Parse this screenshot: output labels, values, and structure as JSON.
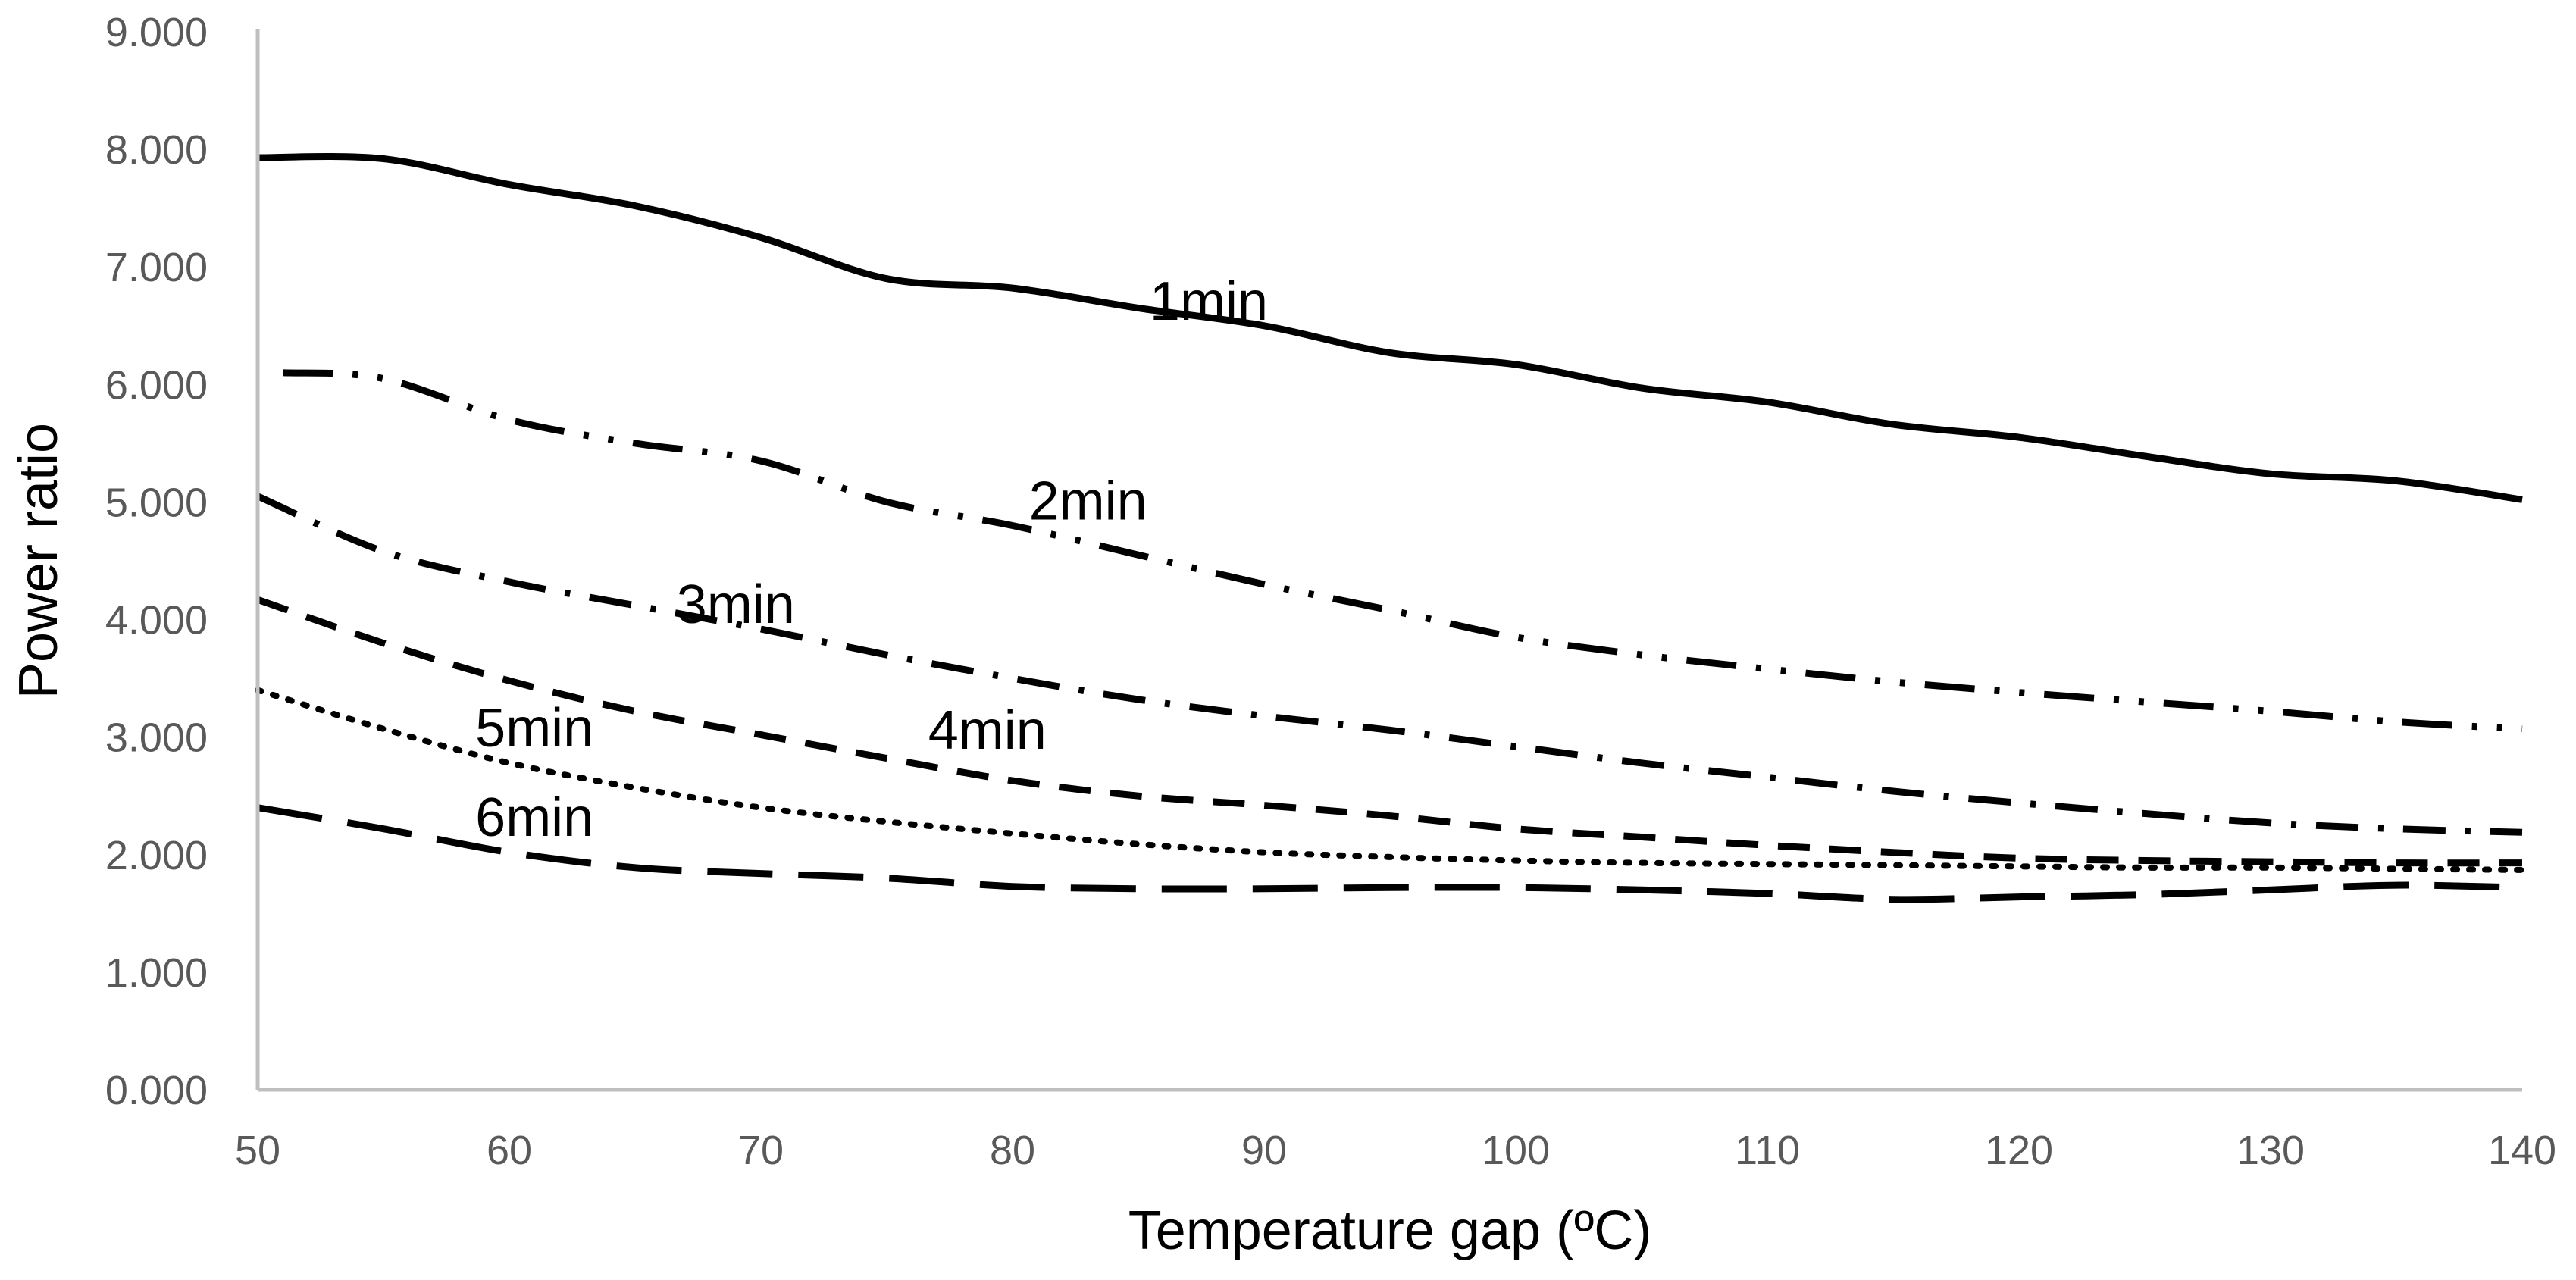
{
  "chart_data": {
    "type": "line",
    "title": "",
    "xlabel": "Temperature gap (ºC)",
    "ylabel": "Power ratio",
    "xlim": [
      50,
      140
    ],
    "ylim": [
      0,
      9
    ],
    "x_ticks": [
      "50",
      "60",
      "70",
      "80",
      "90",
      "100",
      "110",
      "120",
      "130",
      "140"
    ],
    "y_ticks": [
      "0.000",
      "1.000",
      "2.000",
      "3.000",
      "4.000",
      "5.000",
      "6.000",
      "7.000",
      "8.000",
      "9.000"
    ],
    "grid": false,
    "legend": "none",
    "colors": {
      "series": "#000000",
      "axis": "#bfbfbf",
      "tick_text": "#595959"
    },
    "series": [
      {
        "name": "1min",
        "style": "solid",
        "x": [
          50,
          55,
          60,
          65,
          70,
          75,
          80,
          85,
          90,
          95,
          100,
          105,
          110,
          115,
          120,
          125,
          130,
          135,
          140
        ],
        "y": [
          7.93,
          7.92,
          7.7,
          7.52,
          7.25,
          6.9,
          6.82,
          6.65,
          6.5,
          6.27,
          6.17,
          5.97,
          5.85,
          5.66,
          5.55,
          5.39,
          5.24,
          5.18,
          5.02
        ]
      },
      {
        "name": "2min",
        "style": "dash-dot-dot",
        "x": [
          51,
          55,
          60,
          65,
          70,
          75,
          80,
          85,
          90,
          95,
          100,
          105,
          110,
          115,
          120,
          125,
          130,
          135,
          140
        ],
        "y": [
          6.1,
          6.05,
          5.7,
          5.5,
          5.35,
          5.0,
          4.8,
          4.55,
          4.3,
          4.08,
          3.85,
          3.7,
          3.58,
          3.47,
          3.38,
          3.3,
          3.22,
          3.13,
          3.07
        ]
      },
      {
        "name": "3min",
        "style": "dash-dot",
        "x": [
          50,
          55,
          60,
          65,
          70,
          75,
          80,
          85,
          90,
          95,
          100,
          105,
          110,
          115,
          120,
          125,
          130,
          135,
          140
        ],
        "y": [
          5.05,
          4.58,
          4.32,
          4.12,
          3.92,
          3.7,
          3.5,
          3.32,
          3.18,
          3.06,
          2.92,
          2.78,
          2.66,
          2.54,
          2.44,
          2.35,
          2.27,
          2.22,
          2.19
        ]
      },
      {
        "name": "4min",
        "style": "dashed",
        "x": [
          50,
          55,
          60,
          65,
          70,
          75,
          80,
          85,
          90,
          95,
          100,
          105,
          110,
          115,
          120,
          125,
          130,
          135,
          140
        ],
        "y": [
          4.17,
          3.8,
          3.48,
          3.22,
          3.02,
          2.82,
          2.63,
          2.5,
          2.42,
          2.33,
          2.22,
          2.15,
          2.08,
          2.02,
          1.97,
          1.95,
          1.94,
          1.93,
          1.93
        ]
      },
      {
        "name": "5min",
        "style": "dotted",
        "x": [
          50,
          55,
          60,
          65,
          70,
          75,
          80,
          85,
          90,
          95,
          100,
          105,
          110,
          115,
          120,
          125,
          130,
          135,
          140
        ],
        "y": [
          3.4,
          3.07,
          2.78,
          2.57,
          2.4,
          2.28,
          2.18,
          2.09,
          2.02,
          1.98,
          1.95,
          1.93,
          1.92,
          1.91,
          1.9,
          1.89,
          1.89,
          1.88,
          1.87
        ]
      },
      {
        "name": "6min",
        "style": "long-dash",
        "x": [
          50,
          55,
          60,
          65,
          70,
          75,
          80,
          85,
          90,
          95,
          100,
          105,
          110,
          115,
          120,
          125,
          130,
          135,
          140
        ],
        "y": [
          2.4,
          2.22,
          2.02,
          1.89,
          1.84,
          1.8,
          1.73,
          1.71,
          1.71,
          1.72,
          1.72,
          1.7,
          1.67,
          1.62,
          1.64,
          1.66,
          1.7,
          1.74,
          1.72
        ]
      }
    ],
    "annotations": [
      {
        "text": "1min",
        "series": "1min",
        "x": 87.8,
        "y": 6.55
      },
      {
        "text": "2min",
        "series": "2min",
        "x": 83.0,
        "y": 4.85
      },
      {
        "text": "3min",
        "series": "3min",
        "x": 69.0,
        "y": 3.97
      },
      {
        "text": "4min",
        "series": "4min",
        "x": 79.0,
        "y": 2.9
      },
      {
        "text": "5min",
        "series": "5min",
        "x": 61.0,
        "y": 2.92
      },
      {
        "text": "6min",
        "series": "6min",
        "x": 61.0,
        "y": 2.16
      }
    ]
  }
}
